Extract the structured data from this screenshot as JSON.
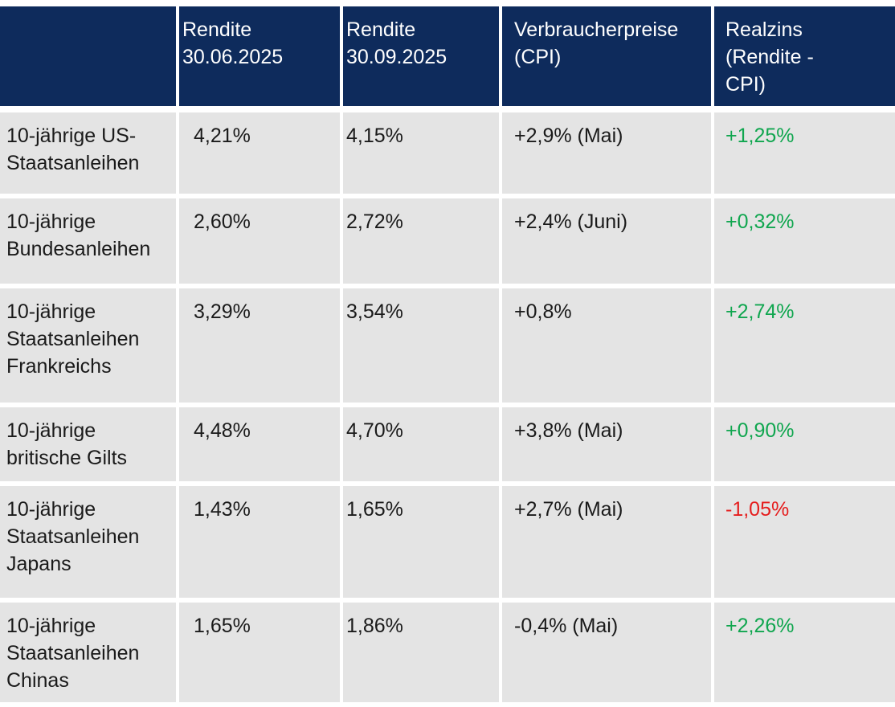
{
  "colors": {
    "header_bg": "#0E2B5C",
    "header_text": "#FFFFFF",
    "row_bg": "#E4E4E4",
    "text": "#1A1A1A",
    "positive": "#10A64F",
    "negative": "#E51D1D"
  },
  "header": {
    "col1": "",
    "rendite_3006": "Rendite\n30.06.2025",
    "rendite_3009": "Rendite\n30.09.2025",
    "cpi": "Verbraucherpreise\n(CPI)",
    "realzins": "Realzins\n(Rendite -\nCPI)"
  },
  "rows": [
    {
      "label": "10-jährige US-\nStaatsanleihen",
      "rendite_3006": "4,21%",
      "rendite_3009": "4,15%",
      "cpi": "+2,9% (Mai)",
      "realzins": "+1,25%",
      "realzins_color": "positive"
    },
    {
      "label": "10-jährige\nBundesanleihen",
      "rendite_3006": "2,60%",
      "rendite_3009": "2,72%",
      "cpi": "+2,4% (Juni)",
      "realzins": "+0,32%",
      "realzins_color": "positive"
    },
    {
      "label": "10-jährige\nStaatsanleihen\nFrankreichs",
      "rendite_3006": "3,29%",
      "rendite_3009": "3,54%",
      "cpi": "+0,8%",
      "realzins": "+2,74%",
      "realzins_color": "positive"
    },
    {
      "label": "10-jährige\nbritische Gilts",
      "rendite_3006": "4,48%",
      "rendite_3009": "4,70%",
      "cpi": "+3,8% (Mai)",
      "realzins": "+0,90%",
      "realzins_color": "positive"
    },
    {
      "label": "10-jährige\nStaatsanleihen\nJapans",
      "rendite_3006": "1,43%",
      "rendite_3009": "1,65%",
      "cpi": "+2,7% (Mai)",
      "realzins": "-1,05%",
      "realzins_color": "negative"
    },
    {
      "label": "10-jährige\nStaatsanleihen\nChinas",
      "rendite_3006": "1,65%",
      "rendite_3009": "1,86%",
      "cpi": "-0,4% (Mai)",
      "realzins": "+2,26%",
      "realzins_color": "positive"
    }
  ],
  "chart_data": {
    "type": "table",
    "columns": [
      "",
      "Rendite 30.06.2025",
      "Rendite 30.09.2025",
      "Verbraucherpreise (CPI)",
      "Realzins (Rendite - CPI)"
    ],
    "rows": [
      [
        "10-jährige US-Staatsanleihen",
        "4,21%",
        "4,15%",
        "+2,9% (Mai)",
        "+1,25%"
      ],
      [
        "10-jährige Bundesanleihen",
        "2,60%",
        "2,72%",
        "+2,4% (Juni)",
        "+0,32%"
      ],
      [
        "10-jährige Staatsanleihen Frankreichs",
        "3,29%",
        "3,54%",
        "+0,8%",
        "+2,74%"
      ],
      [
        "10-jährige britische Gilts",
        "4,48%",
        "4,70%",
        "+3,8% (Mai)",
        "+0,90%"
      ],
      [
        "10-jährige Staatsanleihen Japans",
        "1,43%",
        "1,65%",
        "+2,7% (Mai)",
        "-1,05%"
      ],
      [
        "10-jährige Staatsanleihen Chinas",
        "1,65%",
        "1,86%",
        "-0,4% (Mai)",
        "+2,26%"
      ]
    ]
  }
}
